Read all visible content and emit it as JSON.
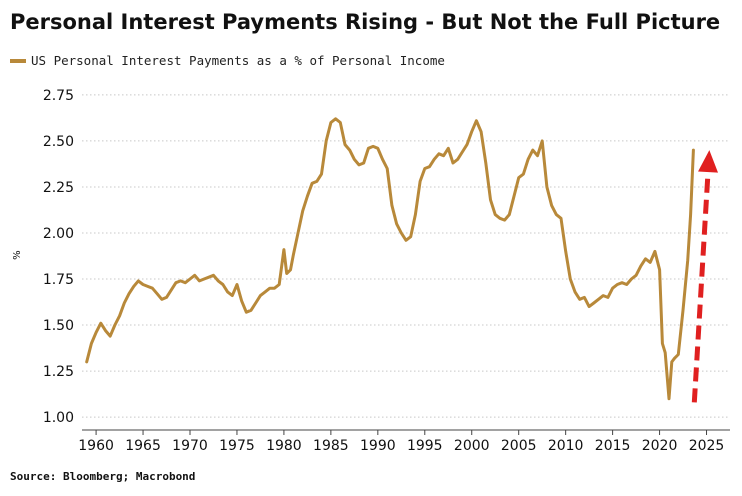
{
  "chart_data": {
    "type": "line",
    "title": "Personal Interest Payments Rising - But Not the Full Picture",
    "ylabel": "%",
    "xlabel": "",
    "source": "Source: Bloomberg; Macrobond",
    "xlim": [
      1958.5,
      2027.5
    ],
    "ylim": [
      0.93,
      2.82
    ],
    "yticks": [
      "1.00",
      "1.25",
      "1.50",
      "1.75",
      "2.00",
      "2.25",
      "2.50",
      "2.75"
    ],
    "xticks": [
      "1960",
      "1965",
      "1970",
      "1975",
      "1980",
      "1985",
      "1990",
      "1995",
      "2000",
      "2005",
      "2010",
      "2015",
      "2020",
      "2025"
    ],
    "grid": "horizontal-dotted",
    "legend_position": "top-left",
    "series": [
      {
        "name": "US Personal Interest Payments as a % of Personal Income",
        "color": "#b8893a",
        "x": [
          1959.0,
          1959.5,
          1960.0,
          1960.5,
          1961.0,
          1961.5,
          1962.0,
          1962.5,
          1963.0,
          1963.5,
          1964.0,
          1964.5,
          1965.0,
          1965.5,
          1966.0,
          1966.5,
          1967.0,
          1967.5,
          1968.0,
          1968.5,
          1969.0,
          1969.5,
          1970.0,
          1970.5,
          1971.0,
          1971.5,
          1972.0,
          1972.5,
          1973.0,
          1973.5,
          1974.0,
          1974.5,
          1975.0,
          1975.5,
          1976.0,
          1976.5,
          1977.0,
          1977.5,
          1978.0,
          1978.5,
          1979.0,
          1979.5,
          1980.0,
          1980.3,
          1980.7,
          1981.0,
          1981.5,
          1982.0,
          1982.5,
          1983.0,
          1983.5,
          1984.0,
          1984.5,
          1985.0,
          1985.5,
          1986.0,
          1986.5,
          1987.0,
          1987.5,
          1988.0,
          1988.5,
          1989.0,
          1989.5,
          1990.0,
          1990.5,
          1991.0,
          1991.5,
          1992.0,
          1992.5,
          1993.0,
          1993.5,
          1994.0,
          1994.5,
          1995.0,
          1995.5,
          1996.0,
          1996.5,
          1997.0,
          1997.5,
          1998.0,
          1998.5,
          1999.0,
          1999.5,
          2000.0,
          2000.5,
          2001.0,
          2001.5,
          2002.0,
          2002.5,
          2003.0,
          2003.5,
          2004.0,
          2004.5,
          2005.0,
          2005.5,
          2006.0,
          2006.5,
          2007.0,
          2007.5,
          2008.0,
          2008.5,
          2009.0,
          2009.5,
          2010.0,
          2010.5,
          2011.0,
          2011.5,
          2012.0,
          2012.5,
          2013.0,
          2013.5,
          2014.0,
          2014.5,
          2015.0,
          2015.5,
          2016.0,
          2016.5,
          2017.0,
          2017.5,
          2018.0,
          2018.5,
          2019.0,
          2019.5,
          2020.0,
          2020.3,
          2020.6,
          2021.0,
          2021.3,
          2021.6,
          2022.0,
          2022.5,
          2023.0,
          2023.3,
          2023.6
        ],
        "values": [
          1.3,
          1.4,
          1.46,
          1.51,
          1.47,
          1.44,
          1.5,
          1.55,
          1.62,
          1.67,
          1.71,
          1.74,
          1.72,
          1.71,
          1.7,
          1.67,
          1.64,
          1.65,
          1.69,
          1.73,
          1.74,
          1.73,
          1.75,
          1.77,
          1.74,
          1.75,
          1.76,
          1.77,
          1.74,
          1.72,
          1.68,
          1.66,
          1.72,
          1.63,
          1.57,
          1.58,
          1.62,
          1.66,
          1.68,
          1.7,
          1.7,
          1.72,
          1.91,
          1.78,
          1.8,
          1.88,
          2.0,
          2.12,
          2.2,
          2.27,
          2.28,
          2.32,
          2.5,
          2.6,
          2.62,
          2.6,
          2.48,
          2.45,
          2.4,
          2.37,
          2.38,
          2.46,
          2.47,
          2.46,
          2.4,
          2.35,
          2.15,
          2.05,
          2.0,
          1.96,
          1.98,
          2.1,
          2.28,
          2.35,
          2.36,
          2.4,
          2.43,
          2.42,
          2.46,
          2.38,
          2.4,
          2.44,
          2.48,
          2.55,
          2.61,
          2.55,
          2.38,
          2.18,
          2.1,
          2.08,
          2.07,
          2.1,
          2.2,
          2.3,
          2.32,
          2.4,
          2.45,
          2.42,
          2.5,
          2.25,
          2.15,
          2.1,
          2.08,
          1.9,
          1.75,
          1.68,
          1.64,
          1.65,
          1.6,
          1.62,
          1.64,
          1.66,
          1.65,
          1.7,
          1.72,
          1.73,
          1.72,
          1.75,
          1.77,
          1.82,
          1.86,
          1.84,
          1.9,
          1.8,
          1.4,
          1.35,
          1.1,
          1.3,
          1.32,
          1.34,
          1.58,
          1.85,
          2.1,
          2.45
        ],
        "line_width": 3
      }
    ],
    "annotations": [
      {
        "type": "arrow",
        "style": "dashed",
        "color": "#e02020",
        "from": [
          2023.7,
          1.08
        ],
        "to": [
          2025.3,
          2.45
        ]
      }
    ]
  }
}
